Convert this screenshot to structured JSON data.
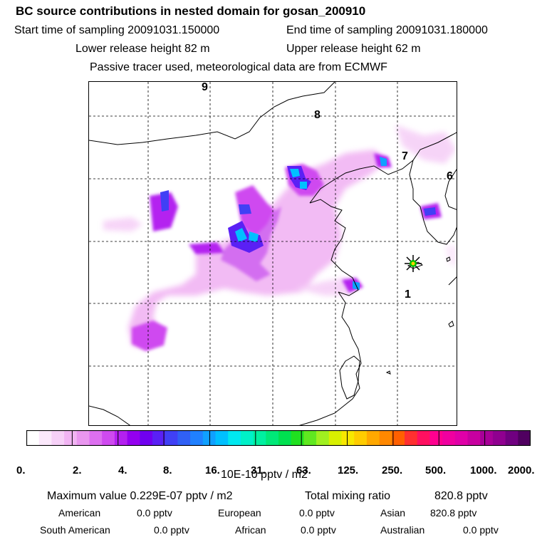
{
  "header": {
    "title": "BC  source contributions in nested domain for gosan_200910",
    "start_time": "Start time of sampling 20091031.150000",
    "end_time": "End time of sampling 20091031.180000",
    "lower_release": "Lower release height   82 m",
    "upper_release": "Upper release height   62 m",
    "tracer_note": "Passive tracer used, meteorological data are from ECMWF"
  },
  "map": {
    "trajectory_labels": [
      "9",
      "8",
      "7",
      "6",
      "1"
    ],
    "receptor_marker": "star"
  },
  "colorbar": {
    "tick_labels": [
      "0.",
      "2.",
      "4.",
      "8.",
      "16.",
      "31.",
      "63.",
      "125.",
      "250.",
      "500.",
      "1000.",
      "2000."
    ],
    "unit": "10E-10 pptv / m2",
    "colors": [
      "#ffffff",
      "#fbe8fb",
      "#f6d0f7",
      "#f1b4f3",
      "#e996ef",
      "#dd6ff0",
      "#cf4af0",
      "#b420f0",
      "#9400f0",
      "#7000f0",
      "#5a20f5",
      "#4040f5",
      "#3060f5",
      "#2080ff",
      "#10a0ff",
      "#00c0ff",
      "#00e8f0",
      "#00f0c8",
      "#00f0a0",
      "#00e878",
      "#00e050",
      "#20e020",
      "#60e820",
      "#a0f020",
      "#d8f000",
      "#f8e800",
      "#ffcc00",
      "#ffa800",
      "#ff8800",
      "#ff6000",
      "#ff3030",
      "#ff1060",
      "#ff0090",
      "#f000a0",
      "#e000a8",
      "#c800a0",
      "#a80098",
      "#900090",
      "#700080",
      "#500060"
    ]
  },
  "stats": {
    "max_value": "Maximum value  0.229E-07 pptv / m2",
    "total_mixing": "Total mixing ratio",
    "total_value": "820.8 pptv"
  },
  "regions": {
    "american_label": "American",
    "american_value": "0.0 pptv",
    "european_label": "European",
    "european_value": "0.0 pptv",
    "asian_label": "Asian",
    "asian_value": "820.8 pptv",
    "south_american_label": "South American",
    "south_american_value": "0.0 pptv",
    "african_label": "African",
    "african_value": "0.0 pptv",
    "australian_label": "Australian",
    "australian_value": "0.0 pptv"
  }
}
